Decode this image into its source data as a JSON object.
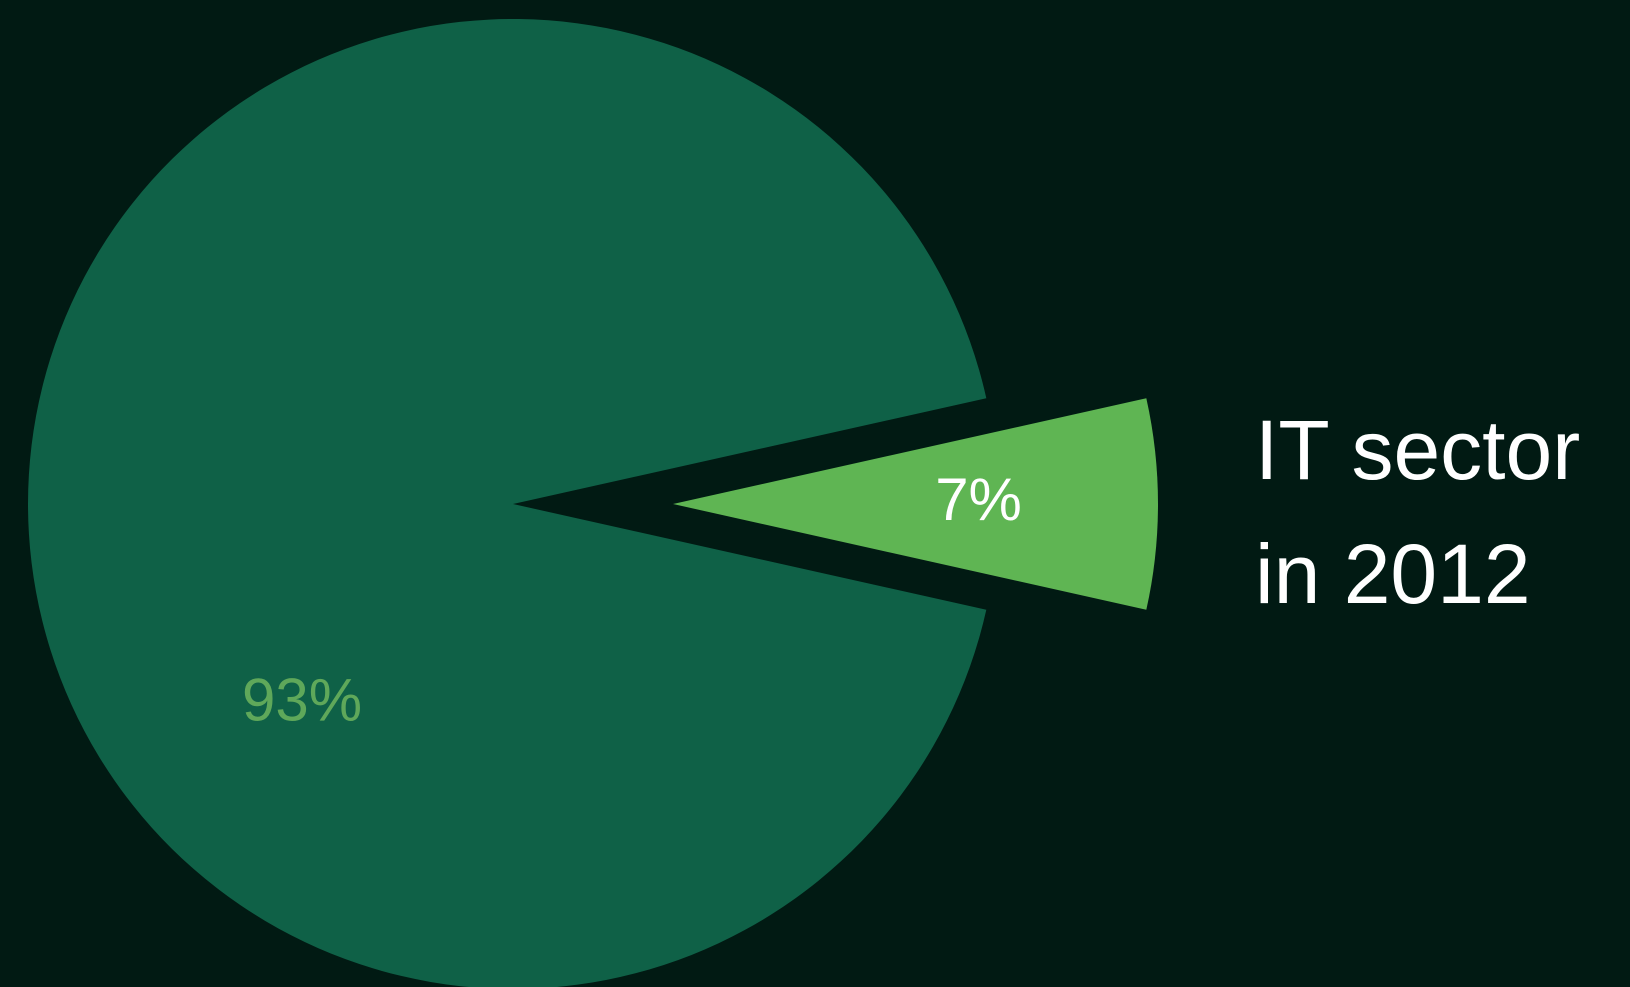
{
  "chart_data": {
    "type": "pie",
    "title_lines": [
      "IT sector",
      "in 2012"
    ],
    "slices": [
      {
        "value": 93,
        "label": "93%",
        "color": "#0f6147",
        "label_color": "#5fa85a",
        "exploded": false
      },
      {
        "value": 7,
        "label": "7%",
        "color": "#5fb553",
        "label_color": "#ffffff",
        "exploded": true
      }
    ]
  },
  "colors": {
    "background": "#011a13"
  }
}
